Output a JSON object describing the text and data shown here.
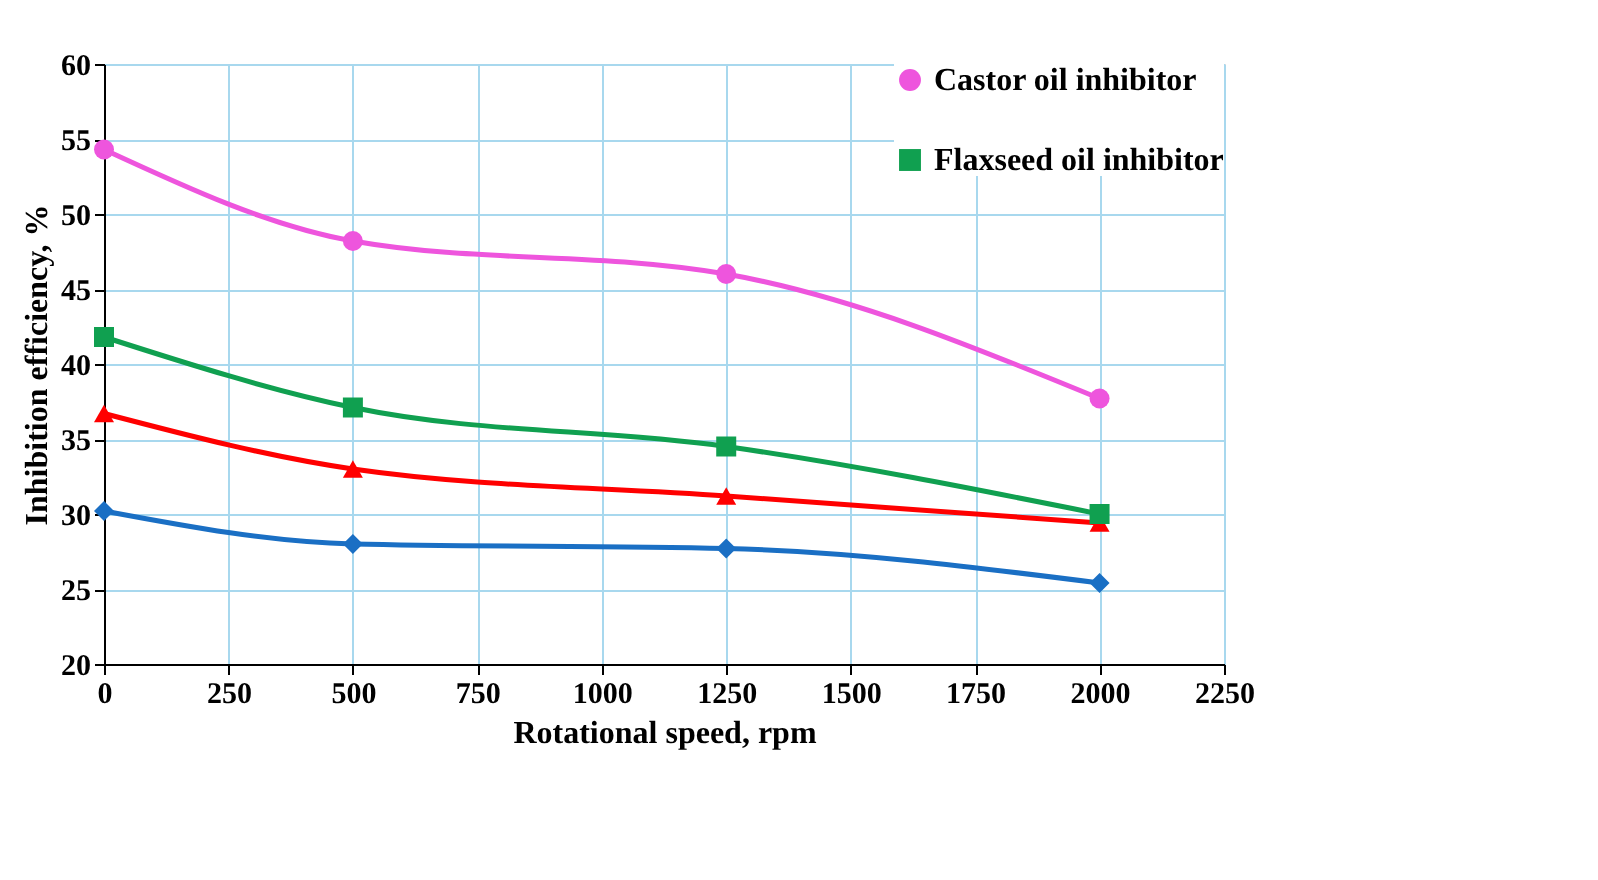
{
  "chart_data": {
    "type": "line",
    "xlabel": "Rotational speed, rpm",
    "ylabel": "Inhibition  efficiency, %",
    "x": [
      0,
      500,
      1250,
      2000
    ],
    "series": [
      {
        "name": "Castor oil inhibitor",
        "color": "#ee55dd",
        "marker": "circle",
        "values": [
          54.3,
          48.2,
          46.0,
          37.7
        ]
      },
      {
        "name": "Flaxseed oil inhibitor",
        "color": "#10a050",
        "marker": "square",
        "values": [
          41.8,
          37.1,
          34.5,
          30.0
        ]
      },
      {
        "color": "#ff0000",
        "marker": "triangle",
        "values": [
          36.7,
          33.0,
          31.2,
          29.4
        ]
      },
      {
        "color": "#1a6fc4",
        "marker": "diamond",
        "values": [
          30.2,
          28.0,
          27.7,
          25.4
        ]
      }
    ],
    "xlim": [
      0,
      2250
    ],
    "xticks": [
      0,
      250,
      500,
      750,
      1000,
      1250,
      1500,
      1750,
      2000,
      2250
    ],
    "ylim": [
      20,
      60
    ],
    "yticks": [
      20,
      25,
      30,
      35,
      40,
      45,
      50,
      55,
      60
    ],
    "grid": true,
    "legend": "top right",
    "line_style": "solid"
  }
}
